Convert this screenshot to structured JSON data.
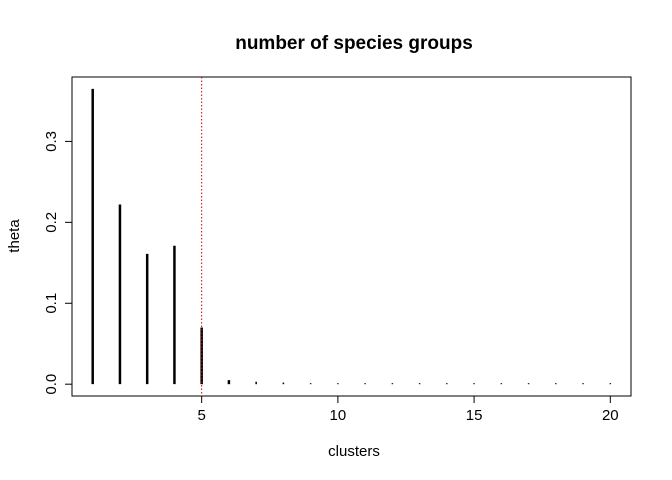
{
  "chart_data": {
    "type": "bar",
    "title": "number of species groups",
    "xlabel": "clusters",
    "ylabel": "theta",
    "x": [
      1,
      2,
      3,
      4,
      5,
      6,
      7,
      8,
      9,
      10,
      11,
      12,
      13,
      14,
      15,
      16,
      17,
      18,
      19,
      20
    ],
    "values": [
      0.365,
      0.222,
      0.161,
      0.171,
      0.07,
      0.005,
      0.003,
      0.002,
      0.001,
      0.001,
      0.001,
      0.001,
      0.001,
      0.001,
      0.001,
      0.001,
      0.001,
      0.001,
      0.001,
      0.001
    ],
    "xlim": [
      0.24,
      20.76
    ],
    "ylim": [
      -0.0146,
      0.3796
    ],
    "xticks": [
      5,
      10,
      15,
      20
    ],
    "xtick_labels": [
      "5",
      "10",
      "15",
      "20"
    ],
    "yticks": [
      0.0,
      0.1,
      0.2,
      0.3
    ],
    "ytick_labels": [
      "0.0",
      "0.1",
      "0.2",
      "0.3"
    ],
    "reference_line": {
      "axis": "x",
      "value": 5,
      "color": "#cc0000",
      "style": "dotted"
    },
    "bar_color": "#000000",
    "grid": false,
    "legend": "none"
  }
}
